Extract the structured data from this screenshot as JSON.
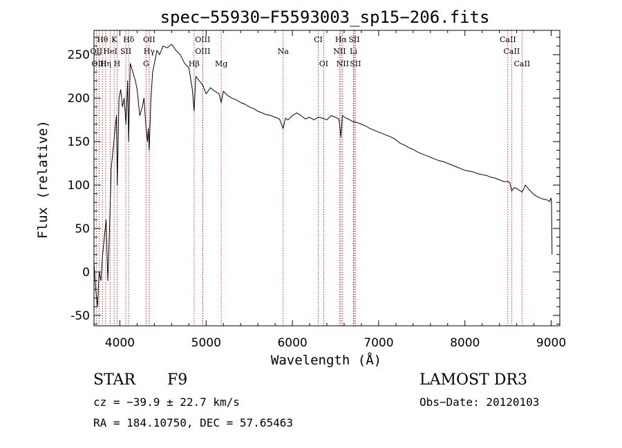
{
  "chart_data": {
    "type": "line",
    "title": "spec−55930−F5593003_sp15−206.fits",
    "xlabel": "Wavelength (Å)",
    "ylabel": "Flux (relative)",
    "xlim": [
      3700,
      9100
    ],
    "ylim": [
      -62,
      278
    ],
    "xticks": [
      4000,
      5000,
      6000,
      7000,
      8000,
      9000
    ],
    "yticks": [
      -50,
      0,
      50,
      100,
      150,
      200,
      250
    ],
    "grid": false,
    "series": [
      {
        "name": "flux",
        "x": [
          3700,
          3720,
          3740,
          3760,
          3780,
          3800,
          3820,
          3840,
          3860,
          3880,
          3900,
          3920,
          3940,
          3960,
          3970,
          3990,
          4010,
          4030,
          4050,
          4070,
          4090,
          4101,
          4120,
          4150,
          4180,
          4200,
          4230,
          4260,
          4280,
          4300,
          4320,
          4330,
          4340,
          4360,
          4380,
          4400,
          4430,
          4460,
          4500,
          4550,
          4600,
          4650,
          4700,
          4750,
          4800,
          4840,
          4861,
          4880,
          4920,
          4960,
          5000,
          5050,
          5100,
          5150,
          5175,
          5200,
          5250,
          5300,
          5350,
          5400,
          5450,
          5500,
          5550,
          5600,
          5650,
          5700,
          5750,
          5800,
          5850,
          5893,
          5920,
          5950,
          6000,
          6050,
          6100,
          6150,
          6200,
          6250,
          6300,
          6350,
          6400,
          6450,
          6500,
          6540,
          6563,
          6580,
          6620,
          6650,
          6700,
          6750,
          6800,
          6850,
          6900,
          6950,
          7000,
          7050,
          7100,
          7150,
          7200,
          7250,
          7300,
          7350,
          7400,
          7450,
          7500,
          7550,
          7600,
          7650,
          7700,
          7750,
          7800,
          7850,
          7900,
          7950,
          8000,
          8050,
          8100,
          8150,
          8200,
          8250,
          8300,
          8350,
          8400,
          8450,
          8498,
          8520,
          8542,
          8570,
          8600,
          8630,
          8662,
          8680,
          8700,
          8750,
          8800,
          8850,
          8900,
          8950,
          8980,
          9000,
          9005,
          9010
        ],
        "y": [
          10,
          -20,
          -40,
          0,
          -10,
          20,
          40,
          60,
          -10,
          50,
          120,
          140,
          160,
          180,
          100,
          200,
          210,
          190,
          200,
          170,
          220,
          150,
          240,
          230,
          220,
          210,
          180,
          190,
          200,
          170,
          150,
          165,
          140,
          200,
          230,
          240,
          255,
          250,
          260,
          258,
          262,
          255,
          250,
          240,
          235,
          210,
          185,
          225,
          220,
          215,
          205,
          212,
          208,
          205,
          195,
          208,
          203,
          200,
          198,
          195,
          193,
          190,
          188,
          185,
          183,
          181,
          180,
          178,
          176,
          165,
          177,
          175,
          180,
          183,
          180,
          176,
          178,
          175,
          178,
          177,
          175,
          180,
          178,
          176,
          155,
          180,
          177,
          176,
          173,
          172,
          170,
          168,
          165,
          163,
          161,
          159,
          157,
          155,
          152,
          148,
          146,
          143,
          141,
          138,
          136,
          134,
          132,
          130,
          128,
          127,
          125,
          123,
          121,
          119,
          117,
          116,
          115,
          113,
          112,
          111,
          109,
          108,
          106,
          104,
          104,
          103,
          93,
          97,
          96,
          94,
          92,
          95,
          100,
          94,
          89,
          86,
          84,
          83,
          81,
          85,
          75,
          20
        ]
      }
    ],
    "line_markers": [
      {
        "label": "Hθ",
        "x": 3798,
        "row": 0
      },
      {
        "label": "K",
        "x": 3934,
        "row": 0
      },
      {
        "label": "Hδ",
        "x": 4102,
        "row": 0
      },
      {
        "label": "OII",
        "x": 4340,
        "row": 0
      },
      {
        "label": "OIII",
        "x": 4960,
        "row": 0
      },
      {
        "label": "CI",
        "x": 6300,
        "row": 0
      },
      {
        "label": "Hα",
        "x": 6563,
        "row": 0
      },
      {
        "label": "SII",
        "x": 6716,
        "row": 0
      },
      {
        "label": "CaII",
        "x": 8498,
        "row": 0
      },
      {
        "label": "OII",
        "x": 3727,
        "row": 1
      },
      {
        "label": "HeI",
        "x": 3889,
        "row": 1
      },
      {
        "label": "SII",
        "x": 4069,
        "row": 1
      },
      {
        "label": "Hγ",
        "x": 4340,
        "row": 1
      },
      {
        "label": "OIII",
        "x": 4960,
        "row": 1
      },
      {
        "label": "Na",
        "x": 5893,
        "row": 1
      },
      {
        "label": "NII",
        "x": 6548,
        "row": 1
      },
      {
        "label": "Li",
        "x": 6708,
        "row": 1
      },
      {
        "label": "CaII",
        "x": 8542,
        "row": 1
      },
      {
        "label": "OIII",
        "x": 3760,
        "row": 2
      },
      {
        "label": "Hη",
        "x": 3835,
        "row": 2
      },
      {
        "label": "H",
        "x": 3968,
        "row": 2
      },
      {
        "label": "G",
        "x": 4304,
        "row": 2
      },
      {
        "label": "Hβ",
        "x": 4861,
        "row": 2
      },
      {
        "label": "Mg",
        "x": 5175,
        "row": 2
      },
      {
        "label": "OI",
        "x": 6363,
        "row": 2
      },
      {
        "label": "NII",
        "x": 6583,
        "row": 2
      },
      {
        "label": "SII",
        "x": 6731,
        "row": 2
      },
      {
        "label": "CaII",
        "x": 8662,
        "row": 2
      }
    ]
  },
  "info": {
    "object_class": "STAR",
    "subclass": "F9",
    "survey": "LAMOST DR3",
    "redshift": "cz = −39.9 ± 22.7 km/s",
    "obs_date": "Obs−Date: 20120103",
    "coords": "RA = 184.10750, DEC =  57.65463"
  }
}
